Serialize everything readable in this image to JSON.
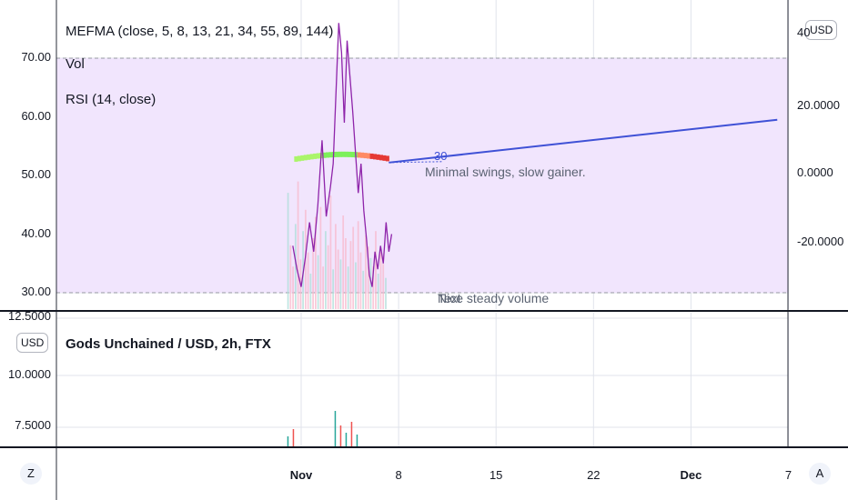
{
  "indicators": {
    "mefma": "MEFMA (close, 5, 8, 13, 21, 34, 55, 89, 144)",
    "vol": "Vol",
    "rsi": "RSI (14, close)"
  },
  "lower_pane": {
    "title": "Gods Unchained / USD, 2h, FTX",
    "currency": "USD"
  },
  "top_currency_button": "USD",
  "annotations": {
    "note1": "Minimal swings, slow gainer.",
    "note2": "Text",
    "note3": "Nice steady volume",
    "rsi_marker": "30"
  },
  "buttons": {
    "bottom_left": "Z",
    "bottom_right": "A"
  },
  "colors": {
    "rsi_band": "#f1e5fd",
    "rsi_line": "#8e24aa",
    "trend_line": "#3f51d6",
    "volume_up": "#26a69a",
    "volume_down": "#ef5350",
    "grid": "#e0e3eb",
    "ma_green": "#4caf50",
    "ma_red": "#e53935"
  },
  "chart_data": {
    "type": "line",
    "x_ticks": [
      "Nov",
      "8",
      "15",
      "22",
      "Dec",
      "7"
    ],
    "rsi_axis": {
      "ticks": [
        30.0,
        40.0,
        50.0,
        60.0,
        70.0
      ],
      "tick_labels": [
        "30.00",
        "40.00",
        "50.00",
        "60.00",
        "70.00"
      ],
      "band": [
        30,
        70
      ]
    },
    "upper_price_axis": {
      "tick_labels": [
        "40",
        "20.0000",
        "0.0000",
        "-20.0000"
      ]
    },
    "lower_price_axis": {
      "tick_labels": [
        "12.5000",
        "10.0000",
        "7.5000"
      ]
    },
    "rsi_series": {
      "name": "RSI (14, close)",
      "days": [
        -0.6,
        -0.3,
        0.0,
        0.3,
        0.6,
        0.9,
        1.2,
        1.5,
        1.8,
        2.1,
        2.3,
        2.5,
        2.7,
        2.9,
        3.1,
        3.3,
        3.5,
        3.7,
        3.9,
        4.1,
        4.3,
        4.5,
        4.7,
        4.9,
        5.1,
        5.3,
        5.5,
        5.7,
        5.9,
        6.1,
        6.3,
        6.5
      ],
      "values": [
        38,
        34,
        31,
        36,
        42,
        37,
        45,
        56,
        43,
        48,
        52,
        64,
        76,
        71,
        59,
        73,
        67,
        61,
        54,
        47,
        52,
        44,
        39,
        33,
        31,
        37,
        34,
        38,
        35,
        42,
        37,
        40
      ]
    },
    "ma_ribbon": {
      "days": [
        -0.5,
        6.3
      ],
      "value_range": [
        52.8,
        53.6
      ]
    },
    "trend_line": {
      "start": {
        "day": 6.3,
        "rsi": 52.2
      },
      "end": {
        "day": 34.2,
        "rsi": 59.5
      }
    },
    "rsi_marker": {
      "day": 6.3,
      "rsi": 52.2,
      "label": "30"
    },
    "volume_bars": [
      0.82,
      0.45,
      0.3,
      0.6,
      0.9,
      0.35,
      0.55,
      0.7,
      0.4,
      0.25,
      0.5,
      0.65,
      0.38,
      0.72,
      0.3,
      0.55,
      0.45,
      0.8,
      0.28,
      0.6,
      0.42,
      0.35,
      0.66,
      0.5,
      0.3,
      0.48,
      0.58,
      0.33,
      0.62,
      0.4,
      0.27,
      0.52,
      0.44,
      0.36,
      0.3,
      0.55,
      0.25,
      0.4,
      0.32,
      0.22
    ],
    "lower_pane_candles": [
      0.3,
      0.5,
      1.0,
      0.6,
      0.4,
      0.7,
      0.35
    ]
  }
}
